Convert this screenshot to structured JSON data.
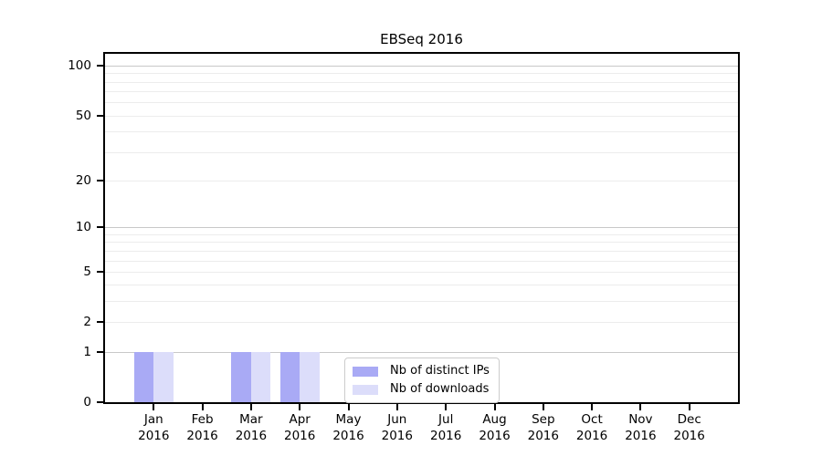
{
  "title": "EBSeq 2016",
  "chart_data": {
    "type": "bar",
    "title": "EBSeq 2016",
    "categories": [
      {
        "month": "Jan",
        "year": "2016"
      },
      {
        "month": "Feb",
        "year": "2016"
      },
      {
        "month": "Mar",
        "year": "2016"
      },
      {
        "month": "Apr",
        "year": "2016"
      },
      {
        "month": "May",
        "year": "2016"
      },
      {
        "month": "Jun",
        "year": "2016"
      },
      {
        "month": "Jul",
        "year": "2016"
      },
      {
        "month": "Aug",
        "year": "2016"
      },
      {
        "month": "Sep",
        "year": "2016"
      },
      {
        "month": "Oct",
        "year": "2016"
      },
      {
        "month": "Nov",
        "year": "2016"
      },
      {
        "month": "Dec",
        "year": "2016"
      }
    ],
    "series": [
      {
        "name": "Nb of distinct IPs",
        "color": "#a9aaf5",
        "values": [
          1,
          0,
          1,
          1,
          0,
          0,
          0,
          0,
          0,
          0,
          0,
          0
        ]
      },
      {
        "name": "Nb of downloads",
        "color": "#dcddfa",
        "values": [
          1,
          0,
          1,
          1,
          0,
          0,
          0,
          0,
          0,
          0,
          0,
          0
        ]
      }
    ],
    "yscale": "log1p",
    "ylim": [
      0,
      118
    ],
    "y_tick_labels": [
      0,
      1,
      2,
      5,
      10,
      20,
      50,
      100
    ],
    "y_major_gridlines": [
      1,
      10,
      100
    ],
    "y_minor_gridlines": [
      2,
      3,
      4,
      5,
      6,
      7,
      8,
      9,
      20,
      30,
      40,
      50,
      60,
      70,
      80,
      90
    ],
    "grid": true,
    "legend_position": "lower center",
    "xlabel": "",
    "ylabel": ""
  }
}
